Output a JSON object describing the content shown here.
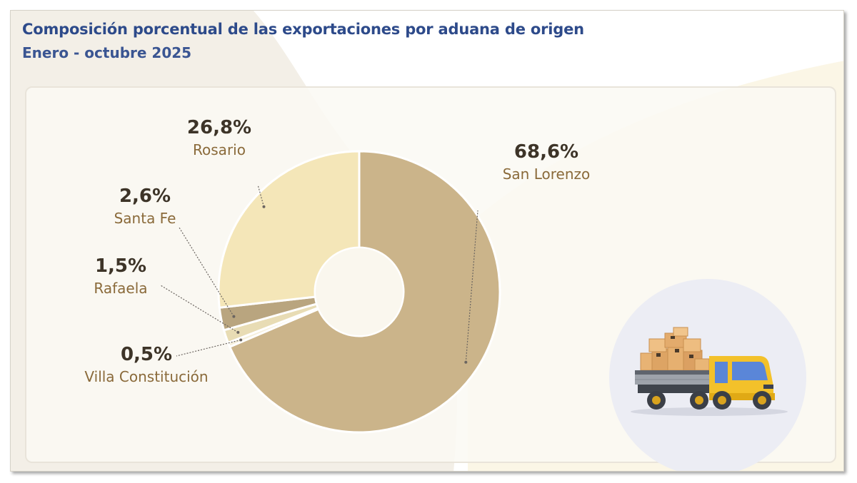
{
  "header": {
    "title": "Composición porcentual de las exportaciones por aduana de origen",
    "subtitle": "Enero - octubre 2025"
  },
  "chart_data": {
    "type": "pie",
    "donut": true,
    "unit": "%",
    "slices": [
      {
        "name": "San Lorenzo",
        "value": 68.6,
        "label": "68,6%",
        "color": "#cbb48a"
      },
      {
        "name": "Villa Constitución",
        "value": 0.5,
        "label": "0,5%",
        "color": "#f6f0dc"
      },
      {
        "name": "Rafaela",
        "value": 1.5,
        "label": "1,5%",
        "color": "#e8dcb4"
      },
      {
        "name": "Santa Fe",
        "value": 2.6,
        "label": "2,6%",
        "color": "#b9a57f"
      },
      {
        "name": "Rosario",
        "value": 26.8,
        "label": "26,8%",
        "color": "#f4e6b8"
      }
    ],
    "colors": {
      "value_text": "#3d3428",
      "name_text": "#8a6a3a",
      "leader": "#6b6560"
    }
  },
  "illustration": {
    "icon": "truck-with-boxes-icon"
  }
}
